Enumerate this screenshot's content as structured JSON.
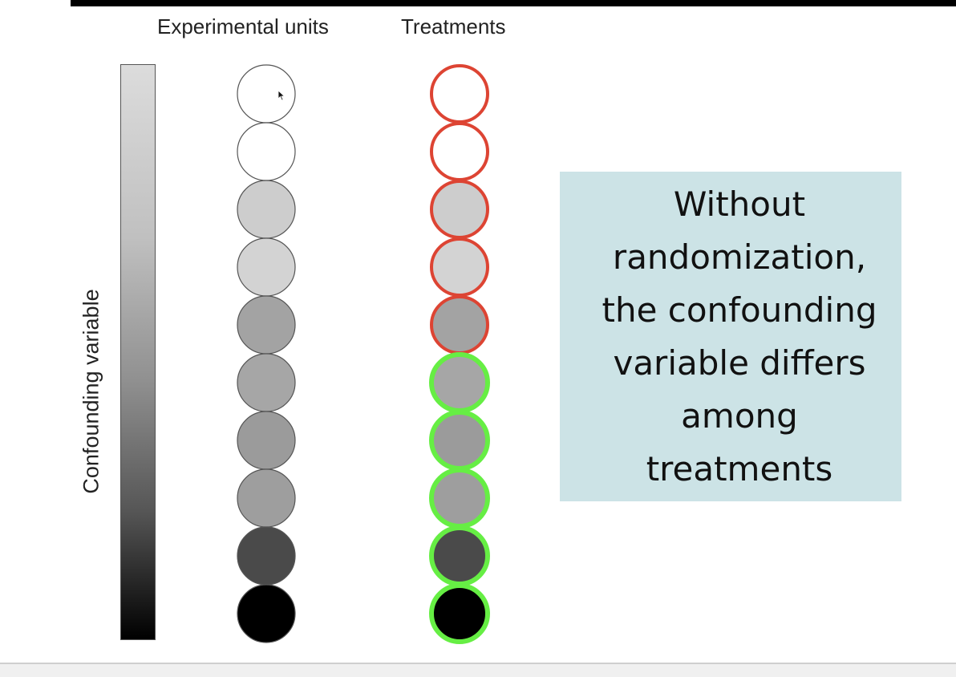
{
  "headings": {
    "experimental_units": "Experimental units",
    "treatments": "Treatments"
  },
  "axis": {
    "label": "Confounding variable",
    "gradient": {
      "top_color": "#dcdcdc",
      "bottom_color": "#000000"
    }
  },
  "units": [
    {
      "fill": "#ffffff"
    },
    {
      "fill": "#ffffff"
    },
    {
      "fill": "#cdcdcd"
    },
    {
      "fill": "#d3d3d3"
    },
    {
      "fill": "#a3a3a3"
    },
    {
      "fill": "#a6a6a6"
    },
    {
      "fill": "#9b9b9b"
    },
    {
      "fill": "#9e9e9e"
    },
    {
      "fill": "#4a4a4a"
    },
    {
      "fill": "#000000"
    }
  ],
  "treatment_colors": {
    "treatment_a": "#dd4433",
    "treatment_b": "#66ee44"
  },
  "treatments": [
    {
      "fill": "#ffffff",
      "group": "treatment_a"
    },
    {
      "fill": "#ffffff",
      "group": "treatment_a"
    },
    {
      "fill": "#cdcdcd",
      "group": "treatment_a"
    },
    {
      "fill": "#d3d3d3",
      "group": "treatment_a"
    },
    {
      "fill": "#a3a3a3",
      "group": "treatment_a"
    },
    {
      "fill": "#a6a6a6",
      "group": "treatment_b"
    },
    {
      "fill": "#9b9b9b",
      "group": "treatment_b"
    },
    {
      "fill": "#9e9e9e",
      "group": "treatment_b"
    },
    {
      "fill": "#4a4a4a",
      "group": "treatment_b"
    },
    {
      "fill": "#000000",
      "group": "treatment_b"
    }
  ],
  "callout": {
    "lines": [
      "Without",
      "randomization,",
      "the confounding",
      "variable differs",
      "among",
      "treatments"
    ],
    "background": "#cce3e6"
  },
  "icons": {
    "cursor": "mouse-pointer-icon"
  }
}
